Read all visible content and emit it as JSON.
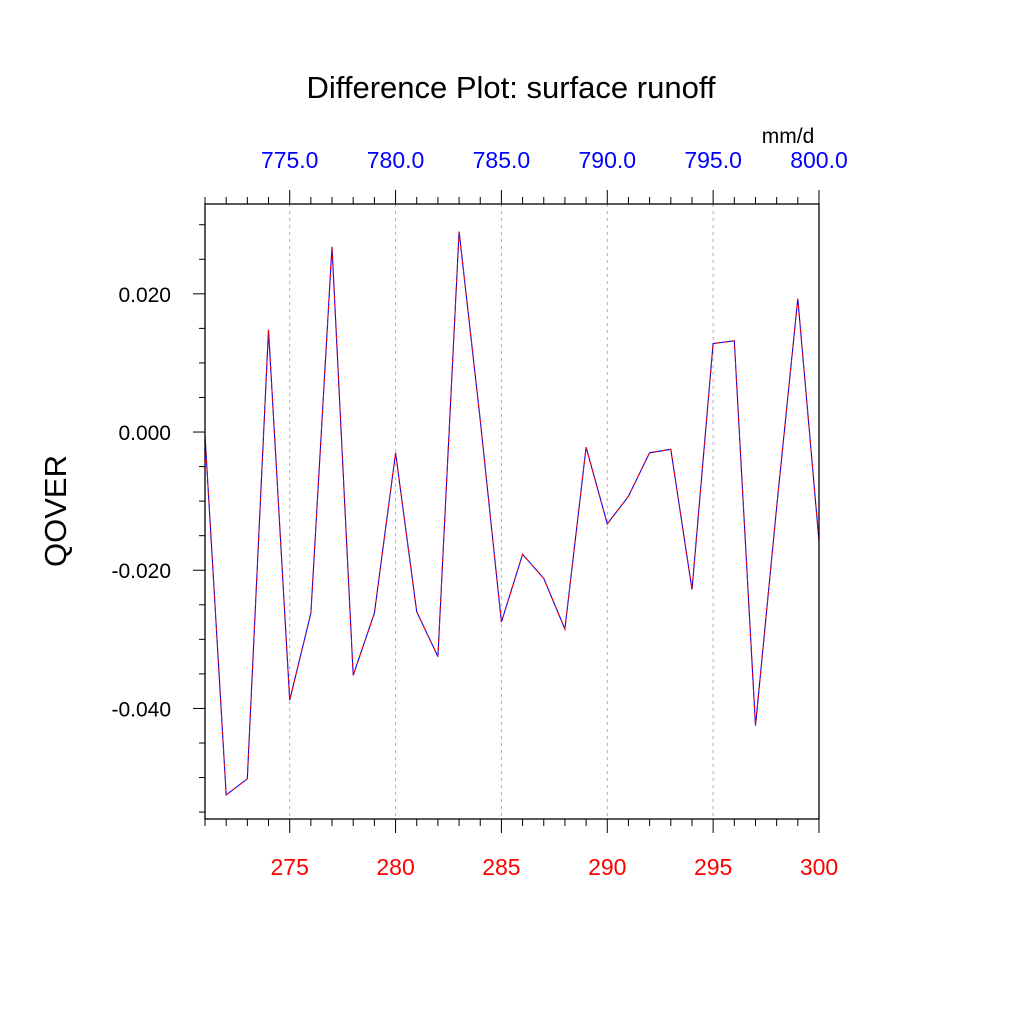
{
  "chart_data": {
    "type": "line",
    "title": "Difference Plot: surface runoff",
    "ylabel": "QOVER",
    "units": "mm/d",
    "x_bottom": {
      "range": [
        271,
        300
      ],
      "ticks": [
        275,
        280,
        285,
        290,
        295,
        300
      ],
      "tick_labels": [
        "275",
        "280",
        "285",
        "290",
        "295",
        "300"
      ],
      "color": "#ff0000"
    },
    "x_top": {
      "ticks": [
        775,
        780,
        785,
        790,
        795,
        800
      ],
      "tick_labels": [
        "775.0",
        "780.0",
        "785.0",
        "790.0",
        "795.0",
        "800.0"
      ],
      "color": "#0000ff"
    },
    "y": {
      "range": [
        -0.056,
        0.033
      ],
      "ticks": [
        -0.04,
        -0.02,
        0.0,
        0.02
      ],
      "tick_labels": [
        "-0.040",
        "-0.020",
        "0.000",
        "0.020"
      ]
    },
    "grid": "vertical dashed at major x ticks",
    "series": [
      {
        "color": "#0000ff",
        "dash_color": "#ff0000",
        "x": [
          271,
          272,
          273,
          274,
          275,
          276,
          277,
          278,
          279,
          280,
          281,
          282,
          283,
          284,
          285,
          286,
          287,
          288,
          289,
          290,
          291,
          292,
          293,
          294,
          295,
          296,
          297,
          298,
          299,
          300
        ],
        "values": [
          -0.0005,
          -0.0525,
          -0.0502,
          0.0148,
          -0.0388,
          -0.0262,
          0.0268,
          -0.0352,
          -0.0262,
          -0.003,
          -0.026,
          -0.0325,
          0.029,
          0.0018,
          -0.0275,
          -0.0177,
          -0.0212,
          -0.0285,
          -0.0022,
          -0.0133,
          -0.0093,
          -0.003,
          -0.0025,
          -0.0228,
          0.0128,
          0.0132,
          -0.0425,
          -0.0108,
          0.0193,
          -0.0158
        ]
      }
    ]
  }
}
